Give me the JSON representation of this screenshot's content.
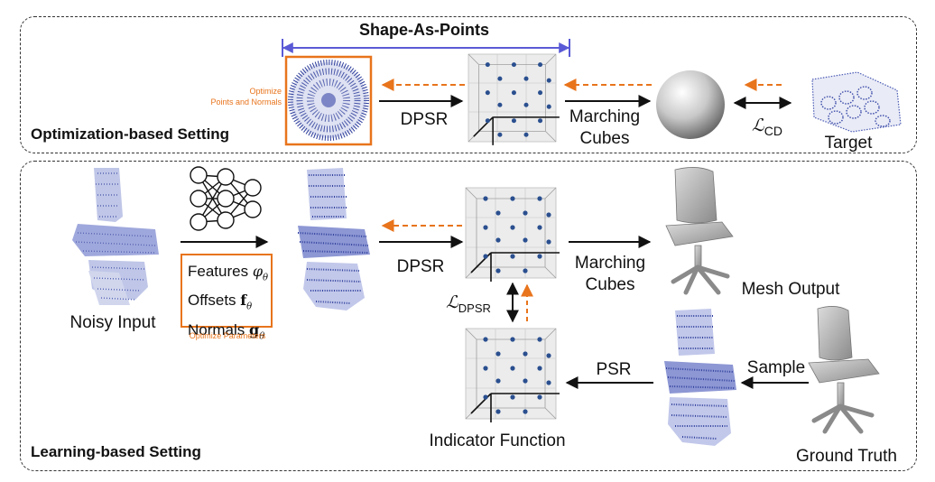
{
  "top": {
    "section_title": "Optimization-based Setting",
    "brace_label": "Shape-As-Points",
    "optimize_note_line1": "Optimize",
    "optimize_note_line2": "Points and Normals",
    "dpsr_label": "DPSR",
    "marching_label_line1": "Marching",
    "marching_label_line2": "Cubes",
    "loss_label": "ℒ",
    "loss_sub": "CD",
    "target_label": "Target"
  },
  "bottom": {
    "section_title": "Learning-based Setting",
    "noisy_input_label": "Noisy Input",
    "params": [
      {
        "name": "Features",
        "symbol": "φ",
        "sub": "θ"
      },
      {
        "name": "Offsets",
        "symbol": "f",
        "sub": "θ"
      },
      {
        "name": "Normals",
        "symbol": "g",
        "sub": "θ"
      }
    ],
    "optimize_params_label": "Optimize Parameters",
    "dpsr_label": "DPSR",
    "marching_label_line1": "Marching",
    "marching_label_line2": "Cubes",
    "mesh_output_label": "Mesh Output",
    "loss_label": "ℒ",
    "loss_sub": "DPSR",
    "psr_label": "PSR",
    "sample_label": "Sample",
    "indicator_label": "Indicator Function",
    "ground_truth_label": "Ground Truth"
  },
  "colors": {
    "orange": "#e8741c",
    "brace_blue": "#5a5ad6",
    "point_blue": "#2f3f9c",
    "grid_node": "#2a4f8f"
  },
  "icons": [
    "neural-network-icon",
    "grid-cube-icon",
    "sphere-icon",
    "chair-icon",
    "point-cloud-icon"
  ]
}
